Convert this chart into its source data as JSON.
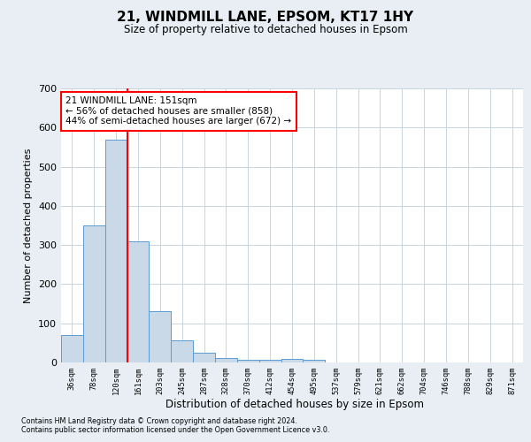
{
  "title": "21, WINDMILL LANE, EPSOM, KT17 1HY",
  "subtitle": "Size of property relative to detached houses in Epsom",
  "xlabel": "Distribution of detached houses by size in Epsom",
  "ylabel": "Number of detached properties",
  "footnote1": "Contains HM Land Registry data © Crown copyright and database right 2024.",
  "footnote2": "Contains public sector information licensed under the Open Government Licence v3.0.",
  "bin_labels": [
    "36sqm",
    "78sqm",
    "120sqm",
    "161sqm",
    "203sqm",
    "245sqm",
    "287sqm",
    "328sqm",
    "370sqm",
    "412sqm",
    "454sqm",
    "495sqm",
    "537sqm",
    "579sqm",
    "621sqm",
    "662sqm",
    "704sqm",
    "746sqm",
    "788sqm",
    "829sqm",
    "871sqm"
  ],
  "bar_values": [
    70,
    350,
    570,
    310,
    130,
    57,
    25,
    12,
    7,
    7,
    10,
    7,
    0,
    0,
    0,
    0,
    0,
    0,
    0,
    0,
    0
  ],
  "bar_color": "#c9d9e8",
  "bar_edge_color": "#5b9bd5",
  "ylim": [
    0,
    700
  ],
  "yticks": [
    0,
    100,
    200,
    300,
    400,
    500,
    600,
    700
  ],
  "property_line_label": "21 WINDMILL LANE: 151sqm",
  "annotation_line1": "← 56% of detached houses are smaller (858)",
  "annotation_line2": "44% of semi-detached houses are larger (672) →",
  "annotation_box_color": "white",
  "annotation_box_edge": "red",
  "red_line_color": "red",
  "background_color": "#e8eef4",
  "plot_bg_color": "#ffffff",
  "grid_color": "#c8d4de"
}
